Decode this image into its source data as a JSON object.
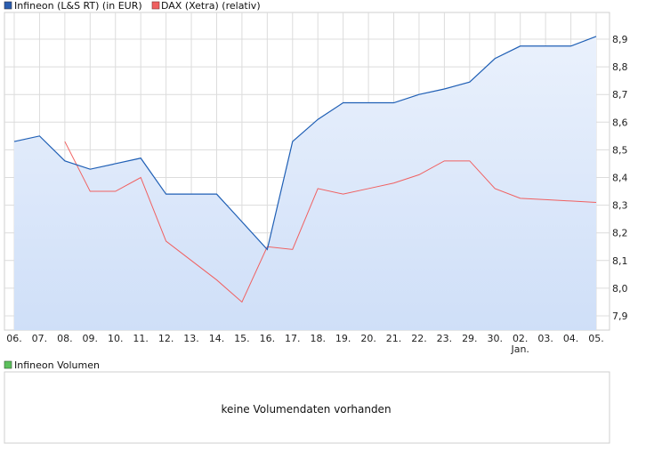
{
  "legend": {
    "infineon": "Infineon (L&S RT) (in EUR)",
    "dax": "DAX (Xetra) (relativ)",
    "volume": "Infineon Volumen"
  },
  "volume_panel": {
    "message": "keine Volumendaten vorhanden"
  },
  "colors": {
    "infineon_line": "#1f5fb5",
    "dax_line": "#f06060",
    "area_top": "#eaf1fc",
    "area_bottom": "#cfdff8",
    "grid": "#dcdcdc",
    "volume_legend": "#5cc05c"
  },
  "chart_data": {
    "type": "line",
    "categories": [
      "06.",
      "07.",
      "08.",
      "09.",
      "10.",
      "11.",
      "12.",
      "13.",
      "14.",
      "15.",
      "16.",
      "17.",
      "18.",
      "19.",
      "20.",
      "21.",
      "22.",
      "23.",
      "29.",
      "30.",
      "02.",
      "03.",
      "04.",
      "05."
    ],
    "category_sublabels": {
      "02.": "Jan."
    },
    "y_ticks": [
      "7,9",
      "8,0",
      "8,1",
      "8,2",
      "8,3",
      "8,4",
      "8,5",
      "8,6",
      "8,7",
      "8,8",
      "8,9"
    ],
    "ylim": [
      7.85,
      8.95
    ],
    "grid": true,
    "legend_position": "top-left",
    "series": [
      {
        "name": "Infineon (L&S RT) (in EUR)",
        "values": [
          8.53,
          8.55,
          8.46,
          8.43,
          8.45,
          8.47,
          8.34,
          8.34,
          8.34,
          8.24,
          8.14,
          8.53,
          8.61,
          8.67,
          8.67,
          8.67,
          8.7,
          8.72,
          8.745,
          8.83,
          8.875,
          8.875,
          8.875,
          8.91
        ],
        "area": true
      },
      {
        "name": "DAX (Xetra) (relativ)",
        "values": [
          null,
          null,
          8.53,
          8.35,
          8.35,
          8.4,
          8.17,
          8.1,
          8.03,
          7.95,
          8.15,
          8.14,
          8.36,
          8.34,
          8.36,
          8.38,
          8.41,
          8.46,
          8.46,
          8.36,
          8.325,
          8.32,
          8.315,
          8.31
        ]
      }
    ]
  }
}
